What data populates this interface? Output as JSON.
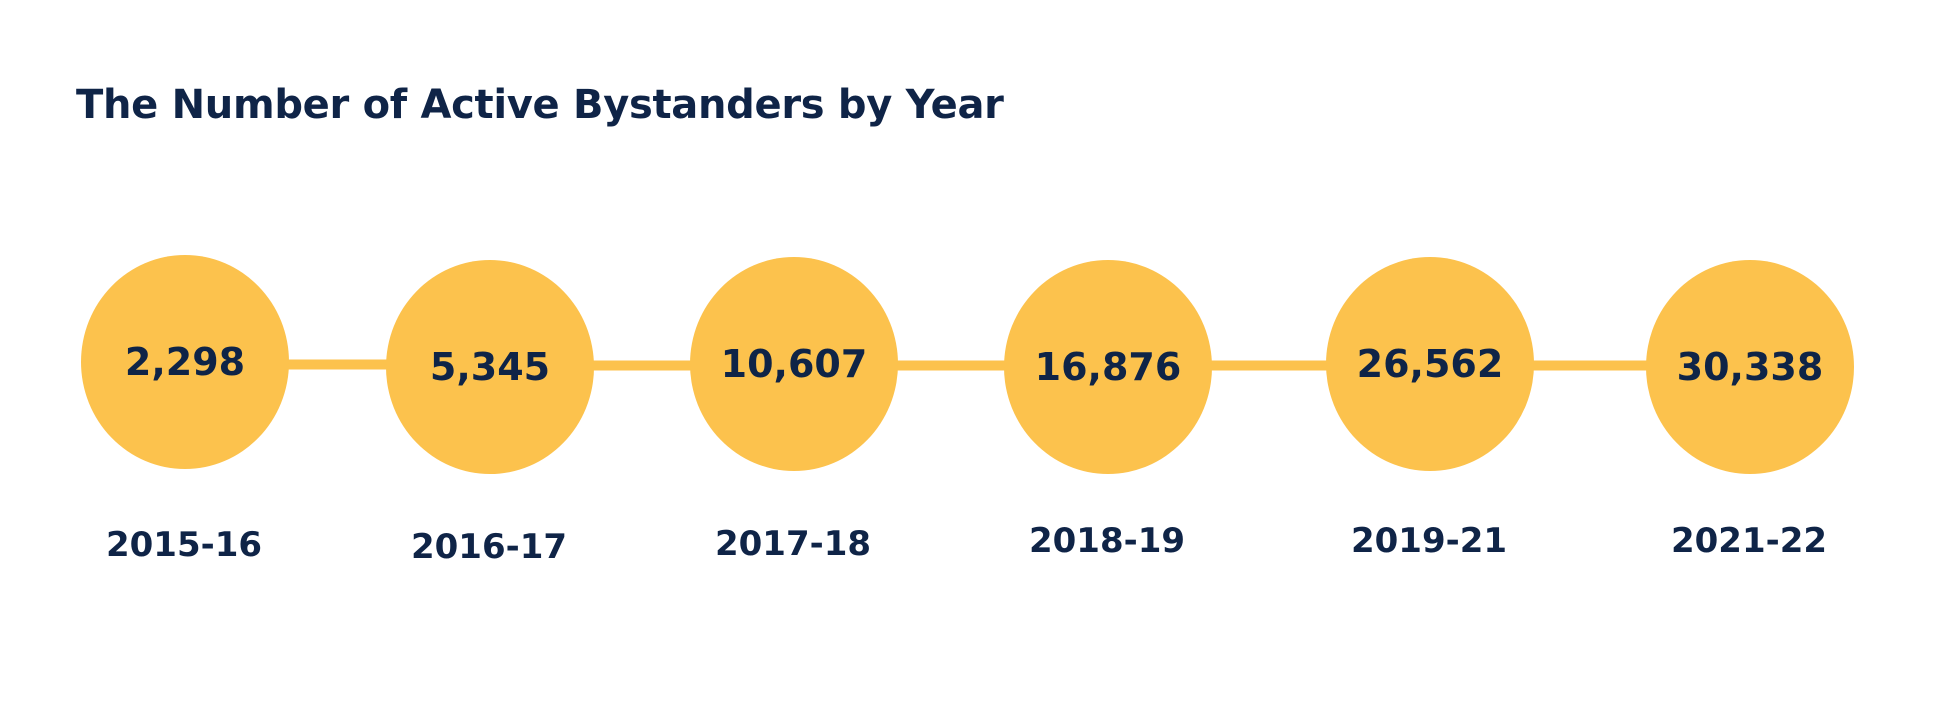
{
  "chart_data": {
    "type": "timeline",
    "title": "The Number of Active Bystanders by Year",
    "categories": [
      "2015-16",
      "2016-17",
      "2017-18",
      "2018-19",
      "2019-21",
      "2021-22"
    ],
    "values": [
      2298,
      5345,
      10607,
      16876,
      26562,
      30338
    ],
    "value_labels": [
      "2,298",
      "5,345",
      "10,607",
      "16,876",
      "26,562",
      "30,338"
    ],
    "colors": {
      "circle": "#fcc24d",
      "connector": "#fcc24d",
      "text": "#0f2447",
      "background": "#ffffff"
    },
    "grid": false,
    "legend": "none"
  }
}
